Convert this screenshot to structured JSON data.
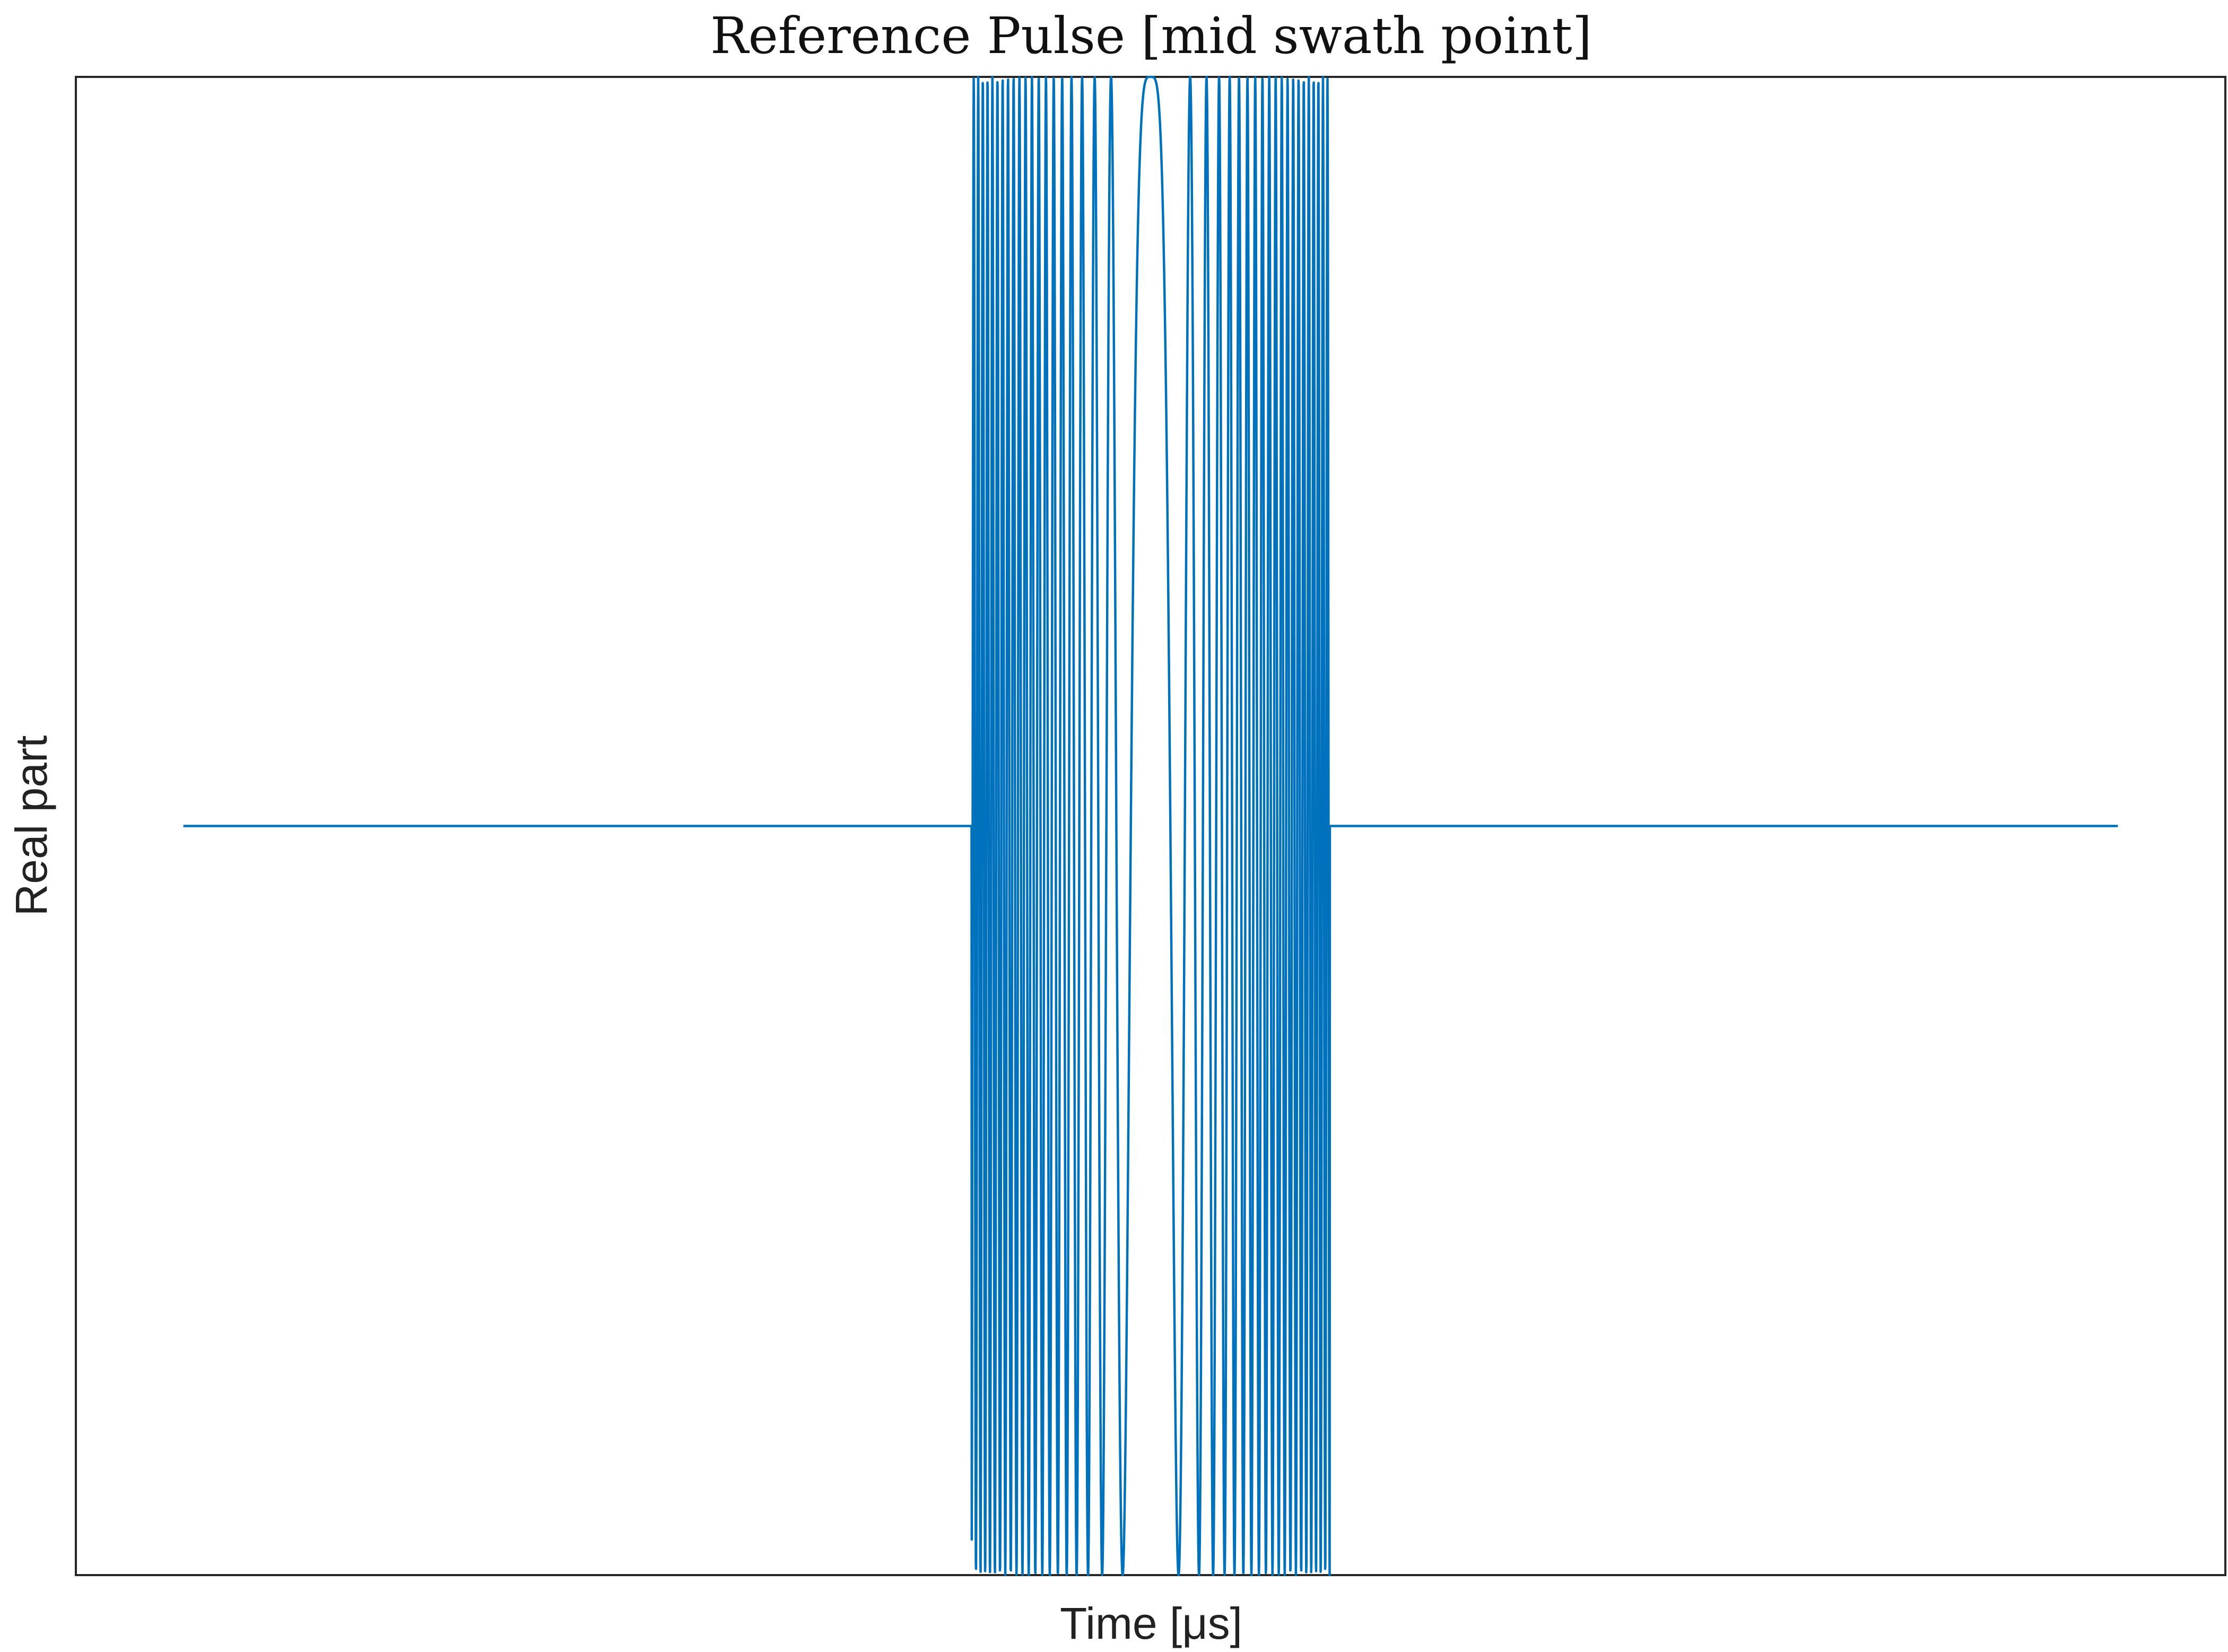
{
  "chart_data": {
    "type": "line",
    "title": "Reference Pulse [mid swath point]",
    "xlabel": "Time [μs]",
    "ylabel": "Real part",
    "x_ticks_shown": false,
    "y_ticks_shown": false,
    "grid": false,
    "legend": "none",
    "xlim": [
      0,
      1
    ],
    "ylim": [
      -1,
      1
    ],
    "series": [
      {
        "color": "#0072BD",
        "signal": "chirp",
        "baseline": 0.0,
        "amplitude": 1.0,
        "pulse_start": 0.4167,
        "pulse_end": 0.5833,
        "pulse_center": 0.5,
        "cycles_per_half_pulse": 20.5
      }
    ]
  }
}
